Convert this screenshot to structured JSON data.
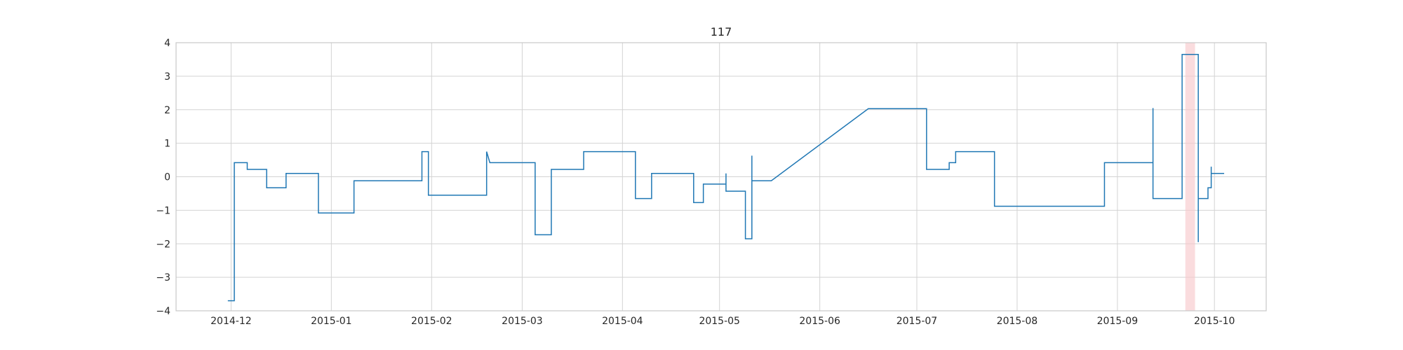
{
  "chart_data": {
    "type": "line",
    "title": "117",
    "xlabel": "",
    "ylabel": "",
    "xlim": [
      "2014-11-14",
      "2015-10-17"
    ],
    "ylim": [
      -4,
      4
    ],
    "grid": true,
    "x_ticks": [
      "2014-12",
      "2015-01",
      "2015-02",
      "2015-03",
      "2015-04",
      "2015-05",
      "2015-06",
      "2015-07",
      "2015-08",
      "2015-09",
      "2015-10"
    ],
    "y_ticks": [
      -4,
      -3,
      -2,
      -1,
      0,
      1,
      2,
      3,
      4
    ],
    "colors": {
      "line": "#1f77b4",
      "highlight": "#f8c9cc"
    },
    "highlight_span": {
      "start": "2015-09-22",
      "end": "2015-09-25"
    },
    "series": [
      {
        "points": [
          [
            "2014-11-30",
            -3.7
          ],
          [
            "2014-12-02",
            -3.7
          ],
          [
            "2014-12-02",
            0.42
          ],
          [
            "2014-12-06",
            0.42
          ],
          [
            "2014-12-06",
            0.22
          ],
          [
            "2014-12-12",
            0.22
          ],
          [
            "2014-12-12",
            -0.33
          ],
          [
            "2014-12-18",
            -0.33
          ],
          [
            "2014-12-18",
            0.1
          ],
          [
            "2014-12-28",
            0.1
          ],
          [
            "2014-12-28",
            -1.08
          ],
          [
            "2015-01-08",
            -1.08
          ],
          [
            "2015-01-08",
            -0.12
          ],
          [
            "2015-01-29",
            -0.12
          ],
          [
            "2015-01-29",
            0.75
          ],
          [
            "2015-01-31",
            0.75
          ],
          [
            "2015-01-31",
            -0.55
          ],
          [
            "2015-02-18",
            -0.55
          ],
          [
            "2015-02-18",
            0.75
          ],
          [
            "2015-02-19",
            0.42
          ],
          [
            "2015-03-05",
            0.42
          ],
          [
            "2015-03-05",
            -1.73
          ],
          [
            "2015-03-10",
            -1.73
          ],
          [
            "2015-03-10",
            0.22
          ],
          [
            "2015-03-20",
            0.22
          ],
          [
            "2015-03-20",
            0.75
          ],
          [
            "2015-04-05",
            0.75
          ],
          [
            "2015-04-05",
            -0.65
          ],
          [
            "2015-04-10",
            -0.65
          ],
          [
            "2015-04-10",
            0.1
          ],
          [
            "2015-04-23",
            0.1
          ],
          [
            "2015-04-23",
            -0.77
          ],
          [
            "2015-04-26",
            -0.77
          ],
          [
            "2015-04-26",
            -0.22
          ],
          [
            "2015-05-03",
            -0.22
          ],
          [
            "2015-05-03",
            0.1
          ],
          [
            "2015-05-03",
            -0.43
          ],
          [
            "2015-05-09",
            -0.43
          ],
          [
            "2015-05-09",
            -1.85
          ],
          [
            "2015-05-11",
            -1.85
          ],
          [
            "2015-05-11",
            0.63
          ],
          [
            "2015-05-11",
            -0.12
          ],
          [
            "2015-05-17",
            -0.12
          ],
          [
            "2015-06-16",
            2.03
          ],
          [
            "2015-07-04",
            2.03
          ],
          [
            "2015-07-04",
            0.22
          ],
          [
            "2015-07-11",
            0.22
          ],
          [
            "2015-07-11",
            0.42
          ],
          [
            "2015-07-13",
            0.42
          ],
          [
            "2015-07-13",
            0.75
          ],
          [
            "2015-07-25",
            0.75
          ],
          [
            "2015-07-25",
            -0.88
          ],
          [
            "2015-08-28",
            -0.88
          ],
          [
            "2015-08-28",
            0.42
          ],
          [
            "2015-09-12",
            0.42
          ],
          [
            "2015-09-12",
            2.05
          ],
          [
            "2015-09-12",
            -0.65
          ],
          [
            "2015-09-21",
            -0.65
          ],
          [
            "2015-09-21",
            3.65
          ],
          [
            "2015-09-26",
            3.65
          ],
          [
            "2015-09-26",
            -1.95
          ],
          [
            "2015-09-26",
            -0.65
          ],
          [
            "2015-09-29",
            -0.65
          ],
          [
            "2015-09-29",
            -0.33
          ],
          [
            "2015-09-30",
            -0.33
          ],
          [
            "2015-09-30",
            0.3
          ],
          [
            "2015-09-30",
            0.1
          ],
          [
            "2015-10-04",
            0.1
          ]
        ]
      }
    ]
  }
}
